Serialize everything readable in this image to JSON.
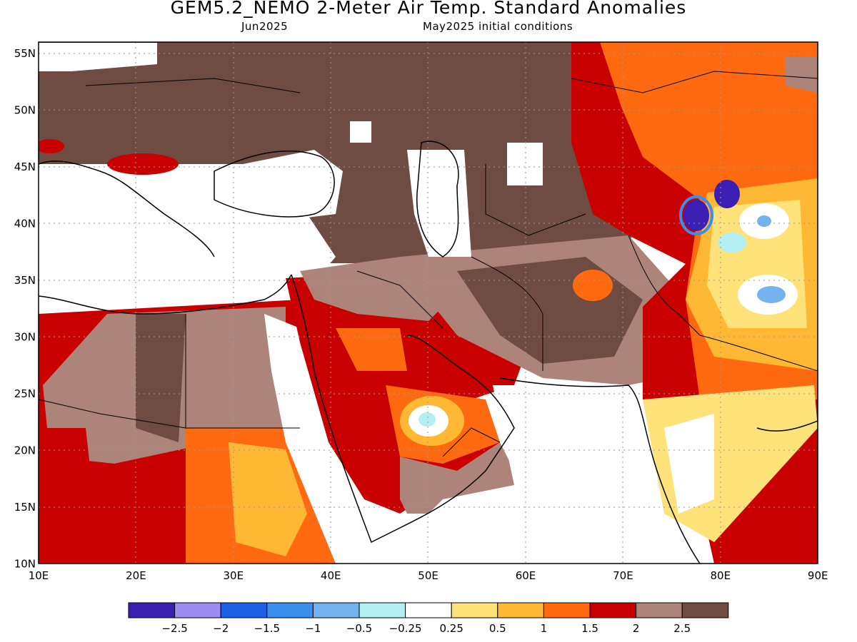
{
  "header": {
    "title": "GEM5.2_NEMO 2-Meter Air Temp. Standard Anomalies",
    "valid": "Jun2025",
    "init": "May2025 initial conditions"
  },
  "map": {
    "lat_labels": [
      "55N",
      "50N",
      "45N",
      "40N",
      "35N",
      "30N",
      "25N",
      "20N",
      "15N",
      "10N"
    ],
    "lon_labels": [
      "10E",
      "20E",
      "30E",
      "40E",
      "50E",
      "60E",
      "70E",
      "80E",
      "90E"
    ],
    "extent": {
      "lon_min": 10,
      "lon_max": 90,
      "lat_min": 10,
      "lat_max": 56
    }
  },
  "colorbar": {
    "colors": [
      "#3b1fb3",
      "#9d8cf3",
      "#1f5ee6",
      "#3a8fee",
      "#74b3f0",
      "#b2eef2",
      "#ffffff",
      "#ffe27a",
      "#ffb834",
      "#ff6a10",
      "#c90000",
      "#ad847a",
      "#6e4c42"
    ],
    "labels": [
      "-2.5",
      "-2",
      "-1.5",
      "-1",
      "-0.5",
      "-0.25",
      "0.25",
      "0.5",
      "1",
      "1.5",
      "2",
      "2.5"
    ]
  }
}
